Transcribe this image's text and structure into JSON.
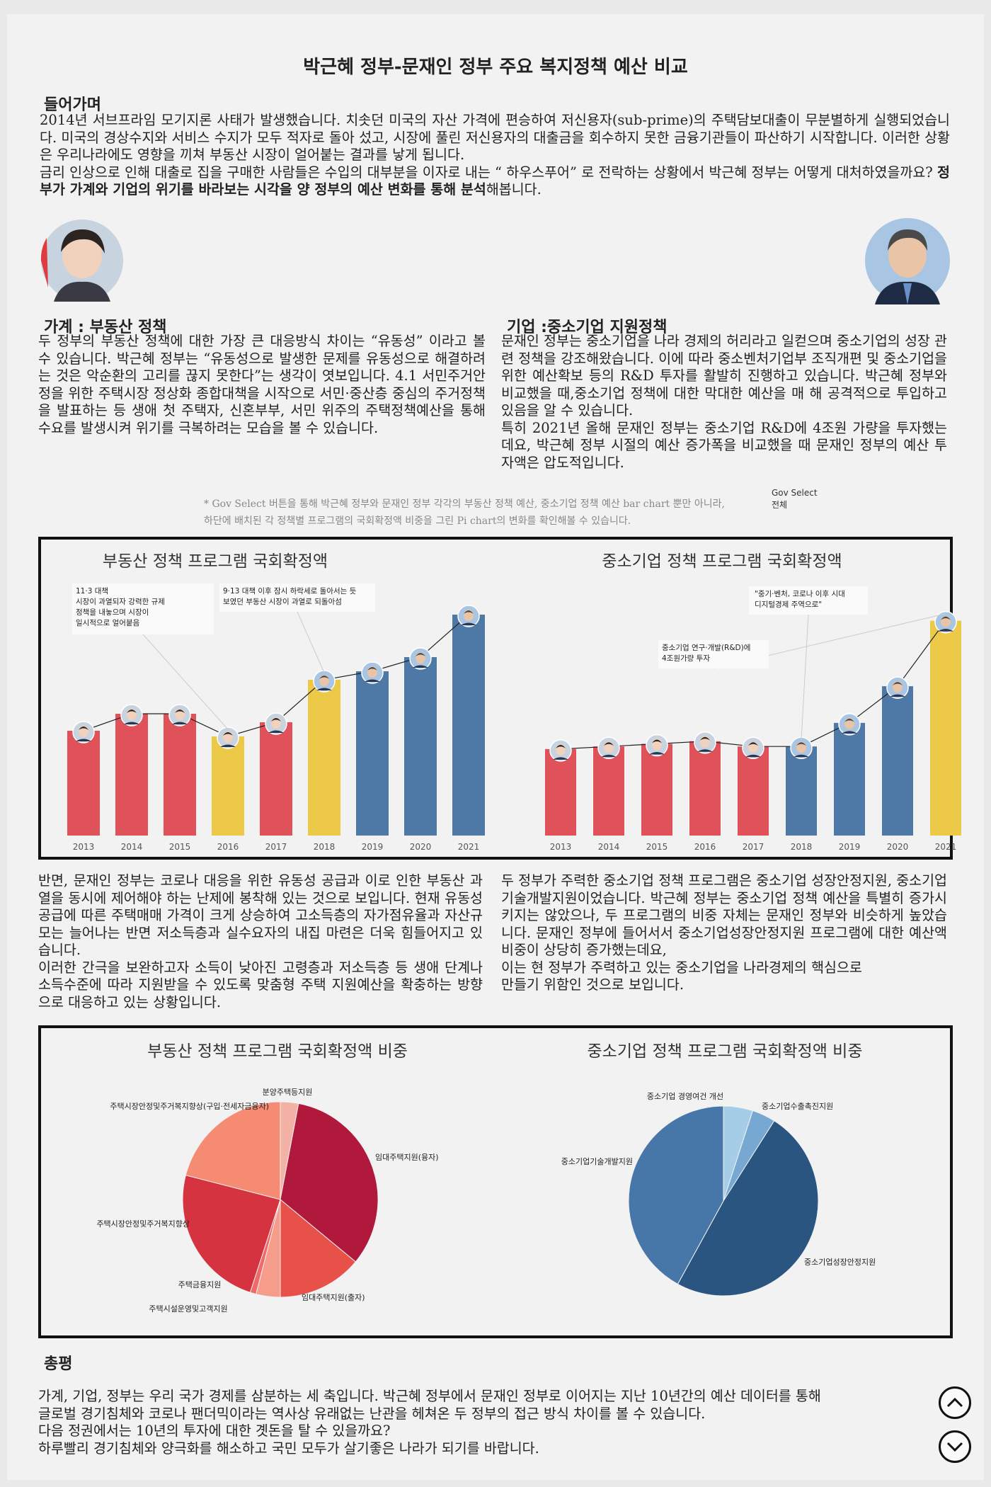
{
  "title": "박근혜 정부-문재인 정부 주요 복지정책 예산 비교",
  "intro": {
    "heading": "들어가며",
    "p1": " 2014년 서브프라임 모기지론 사태가 발생했습니다.  치솟던 미국의 자산 가격에 편승하여 저신용자(sub-prime)의 주택담보대출이 무분별하게 실행되었습니다. 미국의 경상수지와 서비스 수지가 모두 적자로 돌아 섰고, 시장에 풀린 저신용자의 대출금을 회수하지 못한 금융기관들이 파산하기 시작합니다. 이러한 상황은 우리나라에도 영향을 끼쳐 부동산 시장이 얼어붙는 결과를 낳게 됩니다.",
    "p2a": " 금리 인상으로 인해 대출로 집을 구매한 사람들은 수입의 대부분을 이자로 내는 “ 하우스푸어” 로 전락하는 상황에서 박근혜 정부는 어떻게 대처하였을까요? ",
    "p2b": "정부가 가계와 기업의 위기를 바라보는 시각을 양 정부의 예산 변화를 통해 분석",
    "p2c": "해봅니다."
  },
  "household": {
    "heading": "가계 : 부동산 정책",
    "body": " 두 정부의 부동산 정책에 대한 가장 큰 대응방식 차이는 “유동성” 이라고 볼 수 있습니다. 박근혜 정부는 “유동성으로 발생한 문제를 유동성으로 해결하려는 것은 악순환의 고리를 끊지 못한다”는 생각이 엿보입니다. 4.1 서민주거안정을 위한 주택시장 정상화 종합대책을 시작으로 서민·중산층 중심의 주거정책을 발표하는 등 생애 첫 주택자, 신혼부부, 서민 위주의 주택정책예산을 통해 수요를 발생시켜 위기를 극복하려는 모습을 볼 수 있습니다."
  },
  "enterprise": {
    "heading": "기업 :중소기업 지원정책",
    "body1": " 문재인 정부는 중소기업을 나라 경제의 허리라고 일컫으며 중소기업의 성장 관련 정책을 강조해왔습니다. 이에 따라 중소벤처기업부 조직개편 및 중소기업을 위한 예산확보 등의 R&D 투자를 활발히 진행하고 있습니다. 박근혜 정부와 비교했을 때,중소기업 정책에 대한 막대한 예산을 매 해 공격적으로 투입하고 있음을 알 수 있습니다.",
    "body2": " 특히 2021년 올해 문재인 정부는 중소기업 R&D에 4조원 가량을 투자했는데요, 박근혜 정부 시절의 예산 증가폭을 비교했을 때 문재인 정부의 예산 투자액은 압도적입니다."
  },
  "note": {
    "line1": "* Gov Select 버튼을 통해 박근혜 정부와 문재인 정부 각각의 부동산 정책 예산, 중소기업 정책 예산 bar chart 뿐만 아니라,",
    "line2": "하단에 배치된 각 정책별 프로그램의 국회확정액 비중을 그린 Pi chart의 변화를 확인해볼 수 있습니다.",
    "select_label": "Gov Select",
    "select_value": "전체"
  },
  "middle": {
    "left1": " 반면, 문재인 정부는 코로나 대응을 위한 유동성 공급과 이로 인한 부동산 과열을 동시에 제어해야 하는 난제에 봉착해 있는 것으로 보입니다. 현재 유동성 공급에 따른 주택매매 가격이 크게 상승하여 고소득층의 자가점유율과 자산규모는 늘어나는 반면 저소득층과 실수요자의 내집 마련은 더욱 힘들어지고 있습니다.",
    "left2": " 이러한 간극을 보완하고자 소득이 낮아진 고령층과 저소득층 등 생애 단계나 소득수준에 따라 지원받을 수 있도록 맞춤형 주택 지원예산을 확충하는 방향으로 대응하고 있는 상황입니다.",
    "right1": " 두 정부가 주력한 중소기업 정책 프로그램은 중소기업 성장안정지원, 중소기업 기술개발지원이었습니다. 박근혜 정부는 중소기업 정책 예산을 특별히 증가시키지는 않았으나, 두 프로그램의 비중 자체는 문재인 정부와 비슷하게 높았습니다. 문재인 정부에 들어서서 중소기업성장안정지원 프로그램에 대한 예산액 비중이 상당히 증가했는데요,",
    "right2": " 이는 현 정부가 주력하고 있는 중소기업을 나라경제의 핵심으로",
    "right3": "만들기 위함인 것으로 보입니다."
  },
  "conclusion": {
    "heading": "총평",
    "l1": " 가계, 기업, 정부는 우리 국가 경제를 삼분하는 세 축입니다. 박근혜 정부에서 문재인 정부로 이어지는 지난 10년간의 예산 데이터를 통해",
    "l2": "글로벌 경기침체와 코로나 팬더믹이라는 역사상 유래없는 난관을 헤쳐온 두 정부의 접근 방식 차이를 볼 수 있습니다.",
    "l3": "다음 정권에서는 10년의 투자에 대한 곗돈을 탈 수 있을까요?",
    "l4": "하루빨리 경기침체와 양극화를 해소하고 국민 모두가 살기좋은 나라가 되기를 바랍니다."
  },
  "colors": {
    "park": "#e0525a",
    "moon": "#4e79a7",
    "transition": "#edc948"
  },
  "chart_data": [
    {
      "type": "bar",
      "title": "부동산 정책 프로그램 국회확정액",
      "categories": [
        "2013",
        "2014",
        "2015",
        "2016",
        "2017",
        "2018",
        "2019",
        "2020",
        "2021"
      ],
      "values": [
        37,
        43,
        43,
        35,
        40,
        55,
        58,
        63,
        78
      ],
      "bar_colors": [
        "#e0525a",
        "#e0525a",
        "#e0525a",
        "#edc948",
        "#e0525a",
        "#edc948",
        "#4e79a7",
        "#4e79a7",
        "#4e79a7"
      ],
      "annotations": [
        {
          "text": [
            "11·3 대책",
            "시장이 과열되자 강력한 규제",
            "정책을 내놓으며 시장이",
            "일시적으로 얼어붙음"
          ],
          "category": "2016"
        },
        {
          "text": [
            "9·13 대책 이후 잠시 하락세로 돌아서는 듯",
            "보였던 부동산 시장이 과열로 되돌아섬"
          ],
          "category": "2018"
        }
      ]
    },
    {
      "type": "bar",
      "title": "중소기업 정책 프로그램 국회확정액",
      "categories": [
        "2013",
        "2014",
        "2015",
        "2016",
        "2017",
        "2018",
        "2019",
        "2020",
        "2021"
      ],
      "values": [
        33,
        34,
        35,
        36,
        34,
        34,
        43,
        57,
        82
      ],
      "bar_colors": [
        "#e0525a",
        "#e0525a",
        "#e0525a",
        "#e0525a",
        "#e0525a",
        "#4e79a7",
        "#4e79a7",
        "#4e79a7",
        "#edc948"
      ],
      "annotations": [
        {
          "text": [
            "\"중기·벤처, 코로나 이후 시대",
            "디지털경제 주역으로\""
          ],
          "category": "2018"
        },
        {
          "text": [
            "중소기업 연구·개발(R&D)에",
            "4조원가량 투자"
          ],
          "category": "2021"
        }
      ]
    },
    {
      "type": "pie",
      "title": "부동산 정책 프로그램 국회확정액 비중",
      "labels": [
        "분양주택등지원",
        "임대주택지원(융자)",
        "임대주택지원(출자)",
        "주택시설운영및고객지원",
        "주택금융지원",
        "주택시장안정및주거복지향상",
        "주택시장안정및주거복지향상(구입·전세자금융자)"
      ],
      "values": [
        3,
        33,
        14,
        4,
        1,
        24,
        21
      ],
      "colors": [
        "#f4b2a6",
        "#b0183c",
        "#e8514a",
        "#f69c8a",
        "#f06a6a",
        "#d5333f",
        "#f58b73"
      ]
    },
    {
      "type": "pie",
      "title": "중소기업 정책 프로그램 국회확정액 비중",
      "labels": [
        "중소기업 경영여건 개선",
        "중소기업수출촉진지원",
        "중소기업성장안정지원",
        "중소기업기술개발지원"
      ],
      "values": [
        5,
        4,
        49,
        42
      ],
      "colors": [
        "#a6cde8",
        "#76a8d2",
        "#2a5580",
        "#4677a8"
      ]
    }
  ]
}
